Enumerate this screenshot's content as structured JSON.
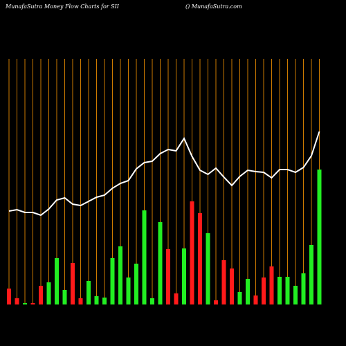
{
  "chart_data": {
    "type": "bar",
    "title": "MunafaSutra  Money Flow  Charts for SII",
    "subtitle": "() MunafaSutra.com",
    "values": [
      23,
      9,
      2,
      2,
      27,
      32,
      67,
      21,
      60,
      9,
      34,
      12,
      10,
      67,
      84,
      39,
      59,
      136,
      9,
      119,
      80,
      16,
      81,
      149,
      132,
      103,
      6,
      64,
      52,
      18,
      37,
      13,
      39,
      55,
      40,
      40,
      27,
      45,
      86,
      195
    ],
    "colors": [
      "#ff1a1a",
      "#ff1a1a",
      "#22ee22",
      "#ff1a1a",
      "#ff1a1a",
      "#22ee22",
      "#22ee22",
      "#22ee22",
      "#ff1a1a",
      "#ff1a1a",
      "#22ee22",
      "#22ee22",
      "#22ee22",
      "#22ee22",
      "#22ee22",
      "#22ee22",
      "#22ee22",
      "#22ee22",
      "#22ee22",
      "#22ee22",
      "#ff1a1a",
      "#ff1a1a",
      "#22ee22",
      "#ff1a1a",
      "#ff1a1a",
      "#22ee22",
      "#ff1a1a",
      "#ff1a1a",
      "#ff1a1a",
      "#22ee22",
      "#22ee22",
      "#ff1a1a",
      "#ff1a1a",
      "#ff1a1a",
      "#22ee22",
      "#22ee22",
      "#22ee22",
      "#22ee22",
      "#22ee22",
      "#22ee22"
    ],
    "line": {
      "color": "#ffffff",
      "values": [
        135,
        137,
        133,
        133,
        129,
        138,
        151,
        154,
        145,
        143,
        149,
        155,
        158,
        168,
        175,
        179,
        196,
        205,
        207,
        218,
        224,
        222,
        240,
        214,
        194,
        188,
        197,
        184,
        172,
        185,
        194,
        192,
        191,
        183,
        195,
        195,
        191,
        198,
        215,
        250
      ]
    },
    "ylim": [
      0,
      440
    ],
    "grid_color": "#cc7a00"
  }
}
